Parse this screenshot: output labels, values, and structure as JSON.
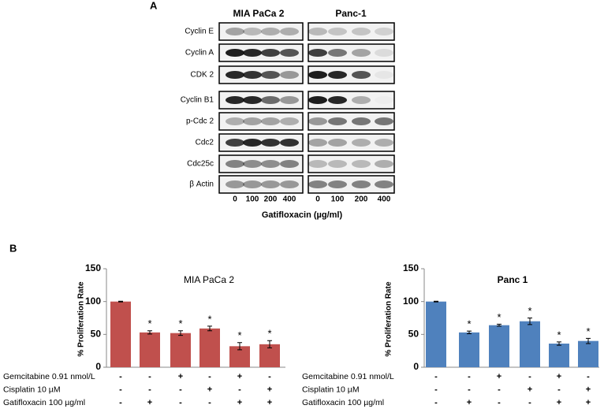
{
  "panel_a": {
    "label": "A",
    "cell_lines": [
      "MIA PaCa 2",
      "Panc-1"
    ],
    "proteins": [
      "Cyclin E",
      "Cyclin A",
      "CDK 2",
      "Cyclin B1",
      "p-Cdc 2",
      "Cdc2",
      "Cdc25c",
      "β Actin"
    ],
    "doses": [
      "0",
      "100",
      "200",
      "400"
    ],
    "x_label": "Gatifloxacin (µg/ml)"
  },
  "panel_b": {
    "label": "B"
  },
  "chart_data": [
    {
      "type": "bar",
      "title": "MIA PaCa 2",
      "y_label": "% Proliferation Rate",
      "categories": [
        null,
        null,
        null,
        null,
        null,
        null
      ],
      "values": [
        100,
        53,
        52,
        59,
        32,
        35
      ],
      "errors": [
        0.5,
        2.5,
        3.5,
        3.5,
        5.5,
        5.5
      ],
      "significance": [
        null,
        "*",
        "*",
        "*",
        "*",
        "*"
      ],
      "color": "#c0504d",
      "ylim": [
        0,
        150
      ],
      "yticks": [
        0,
        50,
        100,
        150
      ],
      "treatments": [
        {
          "name": "Gemcitabine 0.91 nmol/L",
          "signs": [
            "-",
            "-",
            "+",
            "-",
            "+",
            "-"
          ]
        },
        {
          "name": "Cisplatin 10 µM",
          "signs": [
            "-",
            "-",
            "-",
            "+",
            "-",
            "+"
          ]
        },
        {
          "name": "Gatifloxacin 100 µg/ml",
          "signs": [
            "-",
            "+",
            "-",
            "-",
            "+",
            "+"
          ]
        }
      ]
    },
    {
      "type": "bar",
      "title": "Panc 1",
      "y_label": "% Proliferation Rate",
      "categories": [
        null,
        null,
        null,
        null,
        null,
        null
      ],
      "values": [
        100,
        53,
        64,
        70,
        36,
        40
      ],
      "errors": [
        0.5,
        2,
        1.5,
        5,
        2.5,
        4
      ],
      "significance": [
        null,
        "*",
        "*",
        "*",
        "*",
        "*"
      ],
      "color": "#4f81bd",
      "ylim": [
        0,
        150
      ],
      "yticks": [
        0,
        50,
        100,
        150
      ],
      "treatments": [
        {
          "name": "Gemcitabine 0.91 nmol/L",
          "signs": [
            "-",
            "-",
            "+",
            "-",
            "+",
            "-"
          ]
        },
        {
          "name": "Cisplatin 10 µM",
          "signs": [
            "-",
            "-",
            "-",
            "+",
            "-",
            "+"
          ]
        },
        {
          "name": "Gatifloxacin 100 µg/ml",
          "signs": [
            "-",
            "+",
            "-",
            "-",
            "+",
            "+"
          ]
        }
      ]
    }
  ]
}
